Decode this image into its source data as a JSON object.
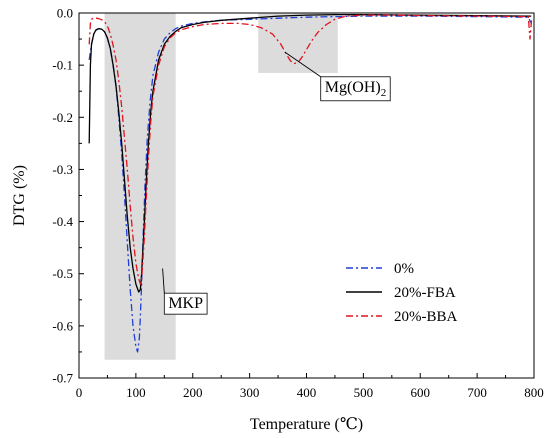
{
  "chart_data": {
    "type": "line",
    "xlabel": "Temperature (℃)",
    "ylabel": "DTG (%)",
    "xlim": [
      0,
      800
    ],
    "ylim": [
      -0.7,
      0.0
    ],
    "xticks": [
      0,
      100,
      200,
      300,
      400,
      500,
      600,
      700,
      800
    ],
    "yticks": [
      0.0,
      -0.1,
      -0.2,
      -0.3,
      -0.4,
      -0.5,
      -0.6,
      -0.7
    ],
    "xtick_labels": [
      "0",
      "100",
      "200",
      "300",
      "400",
      "500",
      "600",
      "700",
      "800"
    ],
    "ytick_labels": [
      "0.0",
      "-0.1",
      "-0.2",
      "-0.3",
      "-0.4",
      "-0.5",
      "-0.6",
      "-0.7"
    ],
    "grid": false,
    "legend_position": "center-right",
    "series": [
      {
        "name": "0%",
        "color": "#1f3fd6",
        "dash": "dash-dot",
        "x": [
          18,
          22,
          26,
          30,
          35,
          40,
          45,
          50,
          55,
          60,
          65,
          70,
          75,
          80,
          85,
          90,
          95,
          100,
          103,
          106,
          108,
          110,
          113,
          116,
          120,
          125,
          130,
          140,
          150,
          160,
          170,
          180,
          200,
          220,
          250,
          300,
          350,
          400,
          450,
          500,
          600,
          700,
          790,
          795
        ],
        "y": [
          -0.09,
          -0.06,
          -0.04,
          -0.033,
          -0.03,
          -0.031,
          -0.036,
          -0.048,
          -0.068,
          -0.1,
          -0.14,
          -0.2,
          -0.27,
          -0.35,
          -0.44,
          -0.53,
          -0.6,
          -0.64,
          -0.65,
          -0.625,
          -0.58,
          -0.52,
          -0.42,
          -0.33,
          -0.24,
          -0.17,
          -0.12,
          -0.075,
          -0.05,
          -0.038,
          -0.03,
          -0.025,
          -0.02,
          -0.017,
          -0.014,
          -0.012,
          -0.01,
          -0.008,
          -0.007,
          -0.006,
          -0.006,
          -0.007,
          -0.008,
          -0.02
        ]
      },
      {
        "name": "20%-FBA",
        "color": "#000000",
        "dash": "solid",
        "x": [
          18,
          20,
          22,
          26,
          30,
          35,
          40,
          45,
          50,
          55,
          60,
          65,
          70,
          75,
          80,
          85,
          90,
          95,
          100,
          105,
          108,
          110,
          112,
          115,
          118,
          122,
          126,
          130,
          140,
          150,
          160,
          170,
          180,
          200,
          220,
          250,
          300,
          350,
          400,
          450,
          500,
          600,
          700,
          795
        ],
        "y": [
          -0.25,
          -0.1,
          -0.06,
          -0.04,
          -0.032,
          -0.03,
          -0.031,
          -0.036,
          -0.048,
          -0.068,
          -0.1,
          -0.14,
          -0.19,
          -0.25,
          -0.32,
          -0.39,
          -0.45,
          -0.49,
          -0.52,
          -0.535,
          -0.53,
          -0.5,
          -0.46,
          -0.4,
          -0.33,
          -0.25,
          -0.19,
          -0.15,
          -0.09,
          -0.06,
          -0.045,
          -0.035,
          -0.028,
          -0.022,
          -0.018,
          -0.014,
          -0.01,
          -0.006,
          -0.004,
          -0.003,
          -0.003,
          -0.004,
          -0.005,
          -0.006
        ]
      },
      {
        "name": "20%-BBA",
        "color": "#e0141e",
        "dash": "dash-dot",
        "x": [
          18,
          20,
          22,
          25,
          30,
          35,
          40,
          45,
          50,
          55,
          60,
          65,
          70,
          75,
          80,
          85,
          90,
          95,
          100,
          105,
          108,
          110,
          112,
          115,
          118,
          122,
          126,
          130,
          140,
          150,
          160,
          170,
          180,
          200,
          220,
          250,
          280,
          300,
          320,
          340,
          355,
          365,
          372,
          378,
          385,
          392,
          400,
          410,
          420,
          435,
          450,
          470,
          500,
          550,
          600,
          700,
          790,
          793,
          796
        ],
        "y": [
          -0.06,
          -0.02,
          -0.012,
          -0.01,
          -0.01,
          -0.011,
          -0.013,
          -0.017,
          -0.025,
          -0.04,
          -0.062,
          -0.09,
          -0.13,
          -0.18,
          -0.24,
          -0.3,
          -0.37,
          -0.43,
          -0.48,
          -0.51,
          -0.52,
          -0.51,
          -0.48,
          -0.43,
          -0.36,
          -0.28,
          -0.21,
          -0.16,
          -0.1,
          -0.065,
          -0.048,
          -0.038,
          -0.032,
          -0.026,
          -0.022,
          -0.02,
          -0.02,
          -0.022,
          -0.028,
          -0.04,
          -0.06,
          -0.08,
          -0.092,
          -0.097,
          -0.095,
          -0.085,
          -0.07,
          -0.052,
          -0.037,
          -0.022,
          -0.012,
          -0.006,
          -0.004,
          -0.004,
          -0.005,
          -0.006,
          -0.007,
          -0.05,
          -0.01
        ]
      }
    ],
    "annotations": [
      {
        "label": "MKP",
        "x_range": [
          45,
          170
        ],
        "y_range": [
          -0.665,
          0.0
        ],
        "label_x": 150,
        "label_y": -0.545,
        "arrow_to_x": 147,
        "arrow_to_y": -0.49
      },
      {
        "label": "Mg(OH)",
        "sub": "2",
        "x_range": [
          315,
          455
        ],
        "y_range": [
          -0.115,
          0.0
        ],
        "label_x": 425,
        "label_y": -0.13,
        "arrow_to_x": 362,
        "arrow_to_y": -0.075
      }
    ]
  }
}
